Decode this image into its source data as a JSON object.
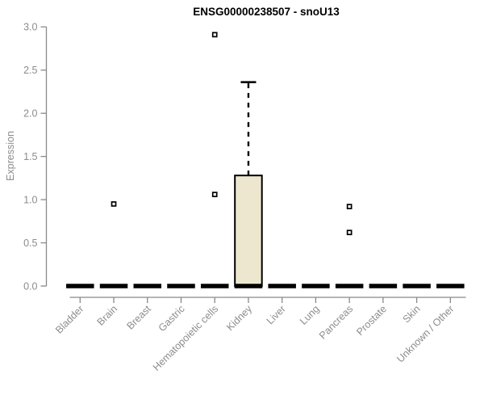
{
  "chart_data": {
    "type": "boxplot",
    "title": "ENSG00000238507 - snoU13",
    "ylabel": "Expression",
    "xlabel": "",
    "ylim": [
      0.0,
      3.0
    ],
    "yticks": [
      0.0,
      0.5,
      1.0,
      1.5,
      2.0,
      2.5,
      3.0
    ],
    "grid": false,
    "legend": "none",
    "categories": [
      "Bladder",
      "Brain",
      "Breast",
      "Gastric",
      "Hematopoietic cells",
      "Kidney",
      "Liver",
      "Lung",
      "Pancreas",
      "Prostate",
      "Skin",
      "Unknown / Other"
    ],
    "boxes": [
      {
        "category": "Bladder",
        "whisker_low": 0.0,
        "q1": 0.0,
        "median": 0.0,
        "q3": 0.0,
        "whisker_high": 0.0,
        "outliers": []
      },
      {
        "category": "Brain",
        "whisker_low": 0.0,
        "q1": 0.0,
        "median": 0.0,
        "q3": 0.0,
        "whisker_high": 0.0,
        "outliers": [
          0.95
        ]
      },
      {
        "category": "Breast",
        "whisker_low": 0.0,
        "q1": 0.0,
        "median": 0.0,
        "q3": 0.0,
        "whisker_high": 0.0,
        "outliers": []
      },
      {
        "category": "Gastric",
        "whisker_low": 0.0,
        "q1": 0.0,
        "median": 0.0,
        "q3": 0.0,
        "whisker_high": 0.0,
        "outliers": []
      },
      {
        "category": "Hematopoietic cells",
        "whisker_low": 0.0,
        "q1": 0.0,
        "median": 0.0,
        "q3": 0.0,
        "whisker_high": 0.0,
        "outliers": [
          2.91,
          1.06
        ]
      },
      {
        "category": "Kidney",
        "whisker_low": 0.0,
        "q1": 0.0,
        "median": 0.0,
        "q3": 1.28,
        "whisker_high": 2.36,
        "outliers": []
      },
      {
        "category": "Liver",
        "whisker_low": 0.0,
        "q1": 0.0,
        "median": 0.0,
        "q3": 0.0,
        "whisker_high": 0.0,
        "outliers": []
      },
      {
        "category": "Lung",
        "whisker_low": 0.0,
        "q1": 0.0,
        "median": 0.0,
        "q3": 0.0,
        "whisker_high": 0.0,
        "outliers": []
      },
      {
        "category": "Pancreas",
        "whisker_low": 0.0,
        "q1": 0.0,
        "median": 0.0,
        "q3": 0.0,
        "whisker_high": 0.0,
        "outliers": [
          0.92,
          0.62
        ]
      },
      {
        "category": "Prostate",
        "whisker_low": 0.0,
        "q1": 0.0,
        "median": 0.0,
        "q3": 0.0,
        "whisker_high": 0.0,
        "outliers": []
      },
      {
        "category": "Skin",
        "whisker_low": 0.0,
        "q1": 0.0,
        "median": 0.0,
        "q3": 0.0,
        "whisker_high": 0.0,
        "outliers": []
      },
      {
        "category": "Unknown / Other",
        "whisker_low": 0.0,
        "q1": 0.0,
        "median": 0.0,
        "q3": 0.0,
        "whisker_high": 0.0,
        "outliers": []
      }
    ],
    "colors": {
      "box_fill": "#ece7ce",
      "box_border": "#000000",
      "median": "#000000",
      "whisker": "#000000",
      "outlier_stroke": "#000000",
      "outlier_fill": "#ffffff",
      "axis": "#898989",
      "tick_label": "#8c8c8c",
      "title": "#000000",
      "background": "#ffffff"
    }
  }
}
